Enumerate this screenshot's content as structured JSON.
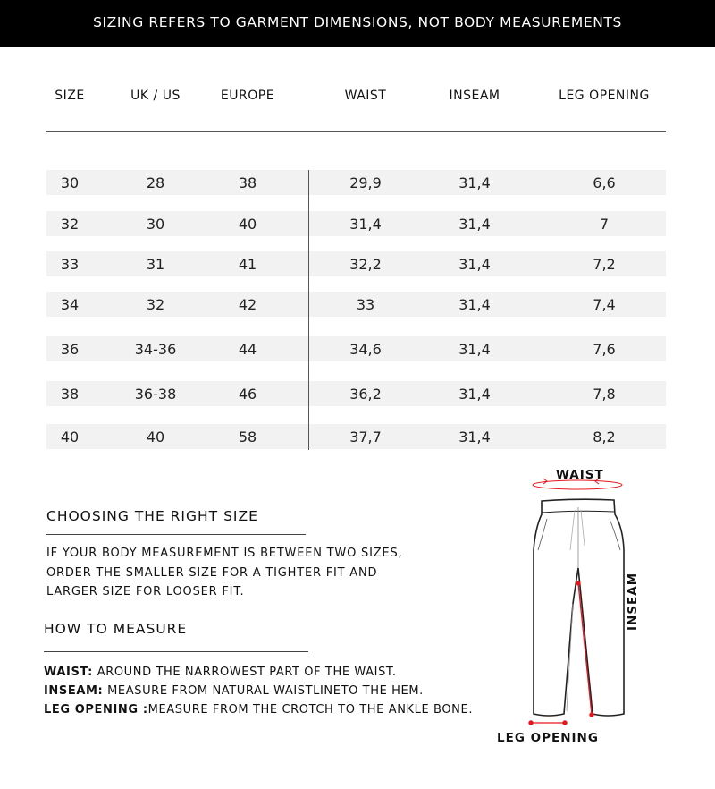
{
  "banner": "SIZING REFERS TO GARMENT DIMENSIONS, NOT BODY MEASUREMENTS",
  "table": {
    "headers": [
      "SIZE",
      "UK / US",
      "EUROPE",
      "WAIST",
      "INSEAM",
      "LEG OPENING"
    ],
    "rows": [
      [
        "30",
        "28",
        "38",
        "29,9",
        "31,4",
        "6,6"
      ],
      [
        "32",
        "30",
        "40",
        "31,4",
        "31,4",
        "7"
      ],
      [
        "33",
        "31",
        "41",
        "32,2",
        "31,4",
        "7,2"
      ],
      [
        "34",
        "32",
        "42",
        "33",
        "31,4",
        "7,4"
      ],
      [
        "36",
        "34-36",
        "44",
        "34,6",
        "31,4",
        "7,6"
      ],
      [
        "38",
        "36-38",
        "46",
        "36,2",
        "31,4",
        "7,8"
      ],
      [
        "40",
        "40",
        "58",
        "37,7",
        "31,4",
        "8,2"
      ]
    ]
  },
  "choosing": {
    "title": "CHOOSING THE RIGHT SIZE",
    "lines": [
      "IF YOUR BODY MEASUREMENT IS BETWEEN TWO SIZES,",
      "ORDER THE SMALLER SIZE FOR A TIGHTER FIT AND",
      "LARGER SIZE FOR LOOSER FIT."
    ]
  },
  "measure": {
    "title": "HOW TO MEASURE",
    "items": [
      {
        "label": "WAIST:",
        "text": " AROUND THE NARROWEST PART OF THE WAIST."
      },
      {
        "label": "INSEAM:",
        "text": " MEASURE FROM NATURAL WAISTLINETO THE HEM."
      },
      {
        "label": "LEG OPENING :",
        "text": "MEASURE FROM THE CROTCH TO THE ANKLE BONE."
      }
    ]
  },
  "diagram": {
    "waist": "WAIST",
    "inseam": "INSEAM",
    "leg_opening": "LEG OPENING",
    "accent": "#e8161b"
  }
}
